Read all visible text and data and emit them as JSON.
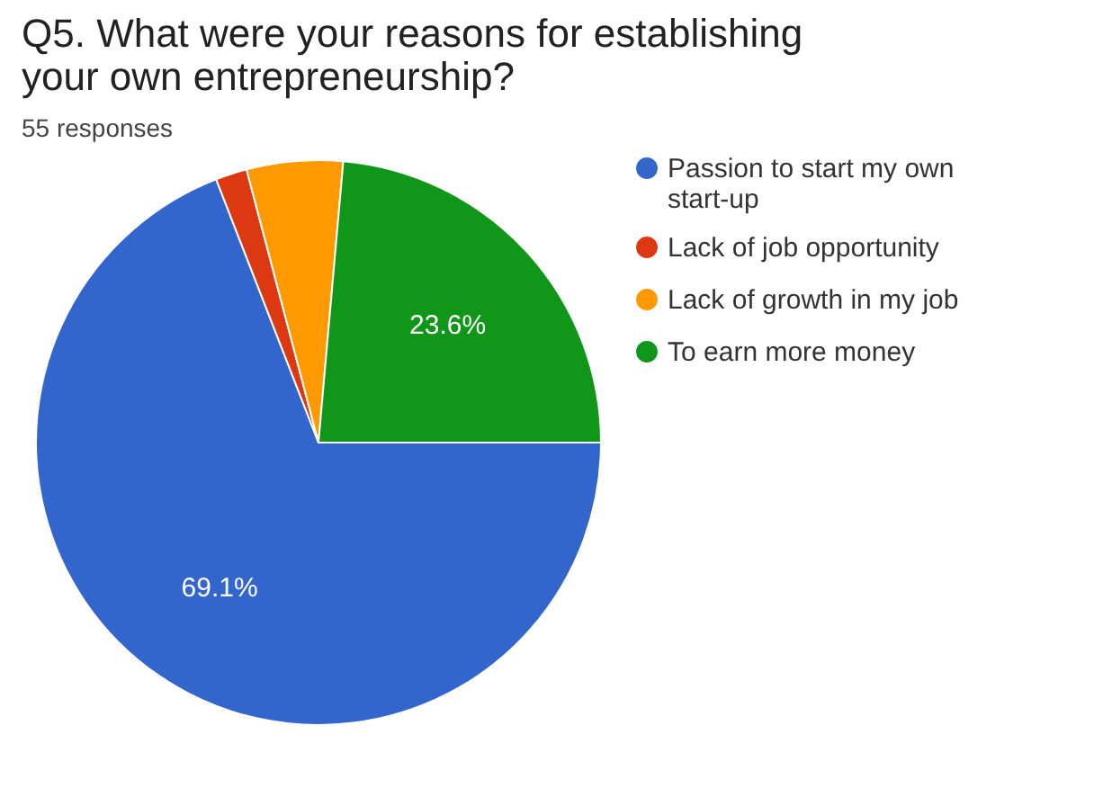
{
  "chart_data": {
    "type": "pie",
    "title": "Q5. What were your reasons for establishing your own entrepreneurship?",
    "subtitle": "55 responses",
    "categories": [
      "Passion to start my own start-up",
      "Lack of job opportunity",
      "Lack of growth in my job",
      "To earn more money"
    ],
    "values": [
      69.1,
      1.8,
      5.5,
      23.6
    ],
    "colors": [
      "#3366cc",
      "#dc3912",
      "#ff9900",
      "#109618"
    ],
    "value_labels": [
      "69.1%",
      null,
      null,
      "23.6%"
    ],
    "legend": "right"
  }
}
